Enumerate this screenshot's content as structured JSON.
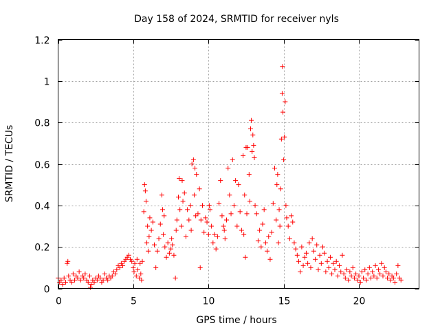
{
  "chart_data": {
    "type": "scatter",
    "title": "Day 158 of 2024, SRMTID for receiver nyls",
    "xlabel": "GPS time / hours",
    "ylabel": "SRMTID / TECUs",
    "xlim": [
      0,
      24
    ],
    "ylim": [
      0,
      1.2
    ],
    "xticks": [
      0,
      5,
      10,
      15,
      20
    ],
    "xtick_labels": [
      "0",
      "5",
      "10",
      "15",
      "20"
    ],
    "yticks": [
      0,
      0.2,
      0.4,
      0.6,
      0.8,
      1,
      1.2
    ],
    "ytick_labels": [
      "0",
      "0.2",
      "0.4",
      "0.6",
      "0.8",
      "1",
      "1.2"
    ],
    "grid": true,
    "marker": "plus",
    "color": "#ff0000",
    "series": [
      {
        "name": "SRMTID",
        "points": [
          [
            0.0,
            0.05
          ],
          [
            0.1,
            0.03
          ],
          [
            0.2,
            0.04
          ],
          [
            0.3,
            0.02
          ],
          [
            0.4,
            0.05
          ],
          [
            0.5,
            0.03
          ],
          [
            0.6,
            0.12
          ],
          [
            0.65,
            0.13
          ],
          [
            0.7,
            0.06
          ],
          [
            0.8,
            0.04
          ],
          [
            0.9,
            0.03
          ],
          [
            1.0,
            0.07
          ],
          [
            1.1,
            0.04
          ],
          [
            1.2,
            0.06
          ],
          [
            1.3,
            0.05
          ],
          [
            1.4,
            0.08
          ],
          [
            1.5,
            0.04
          ],
          [
            1.6,
            0.06
          ],
          [
            1.7,
            0.05
          ],
          [
            1.8,
            0.07
          ],
          [
            1.9,
            0.04
          ],
          [
            2.0,
            0.03
          ],
          [
            2.1,
            0.06
          ],
          [
            2.15,
            0.005
          ],
          [
            2.2,
            0.02
          ],
          [
            2.3,
            0.04
          ],
          [
            2.4,
            0.03
          ],
          [
            2.5,
            0.05
          ],
          [
            2.6,
            0.04
          ],
          [
            2.7,
            0.06
          ],
          [
            2.8,
            0.05
          ],
          [
            2.9,
            0.03
          ],
          [
            3.0,
            0.04
          ],
          [
            3.1,
            0.07
          ],
          [
            3.2,
            0.05
          ],
          [
            3.3,
            0.04
          ],
          [
            3.4,
            0.06
          ],
          [
            3.5,
            0.05
          ],
          [
            3.6,
            0.06
          ],
          [
            3.7,
            0.08
          ],
          [
            3.8,
            0.07
          ],
          [
            3.9,
            0.09
          ],
          [
            4.0,
            0.11
          ],
          [
            4.1,
            0.1
          ],
          [
            4.2,
            0.12
          ],
          [
            4.3,
            0.11
          ],
          [
            4.4,
            0.13
          ],
          [
            4.5,
            0.14
          ],
          [
            4.6,
            0.15
          ],
          [
            4.7,
            0.16
          ],
          [
            4.8,
            0.14
          ],
          [
            4.9,
            0.13
          ],
          [
            5.0,
            0.1
          ],
          [
            5.05,
            0.08
          ],
          [
            5.1,
            0.12
          ],
          [
            5.2,
            0.06
          ],
          [
            5.25,
            0.14
          ],
          [
            5.3,
            0.09
          ],
          [
            5.4,
            0.05
          ],
          [
            5.45,
            0.12
          ],
          [
            5.5,
            0.07
          ],
          [
            5.55,
            0.04
          ],
          [
            5.6,
            0.13
          ],
          [
            5.7,
            0.37
          ],
          [
            5.75,
            0.5
          ],
          [
            5.8,
            0.47
          ],
          [
            5.85,
            0.42
          ],
          [
            5.9,
            0.22
          ],
          [
            5.95,
            0.3
          ],
          [
            6.0,
            0.18
          ],
          [
            6.05,
            0.25
          ],
          [
            6.1,
            0.34
          ],
          [
            6.2,
            0.28
          ],
          [
            6.3,
            0.32
          ],
          [
            6.4,
            0.21
          ],
          [
            6.5,
            0.1
          ],
          [
            6.6,
            0.18
          ],
          [
            6.7,
            0.24
          ],
          [
            6.8,
            0.31
          ],
          [
            6.9,
            0.45
          ],
          [
            6.95,
            0.38
          ],
          [
            7.0,
            0.26
          ],
          [
            7.05,
            0.35
          ],
          [
            7.1,
            0.2
          ],
          [
            7.2,
            0.15
          ],
          [
            7.3,
            0.22
          ],
          [
            7.4,
            0.17
          ],
          [
            7.5,
            0.19
          ],
          [
            7.55,
            0.24
          ],
          [
            7.6,
            0.21
          ],
          [
            7.7,
            0.16
          ],
          [
            7.8,
            0.05
          ],
          [
            7.85,
            0.28
          ],
          [
            7.9,
            0.33
          ],
          [
            8.0,
            0.44
          ],
          [
            8.05,
            0.53
          ],
          [
            8.1,
            0.38
          ],
          [
            8.2,
            0.3
          ],
          [
            8.25,
            0.52
          ],
          [
            8.3,
            0.42
          ],
          [
            8.4,
            0.46
          ],
          [
            8.5,
            0.25
          ],
          [
            8.6,
            0.38
          ],
          [
            8.7,
            0.33
          ],
          [
            8.8,
            0.4
          ],
          [
            8.85,
            0.28
          ],
          [
            8.9,
            0.6
          ],
          [
            9.0,
            0.62
          ],
          [
            9.05,
            0.45
          ],
          [
            9.1,
            0.58
          ],
          [
            9.15,
            0.35
          ],
          [
            9.2,
            0.55
          ],
          [
            9.3,
            0.36
          ],
          [
            9.4,
            0.48
          ],
          [
            9.45,
            0.1
          ],
          [
            9.5,
            0.33
          ],
          [
            9.6,
            0.4
          ],
          [
            9.7,
            0.27
          ],
          [
            9.8,
            0.34
          ],
          [
            9.9,
            0.32
          ],
          [
            10.0,
            0.26
          ],
          [
            10.05,
            0.4
          ],
          [
            10.1,
            0.38
          ],
          [
            10.2,
            0.3
          ],
          [
            10.3,
            0.22
          ],
          [
            10.4,
            0.26
          ],
          [
            10.5,
            0.19
          ],
          [
            10.6,
            0.25
          ],
          [
            10.7,
            0.41
          ],
          [
            10.8,
            0.52
          ],
          [
            10.9,
            0.35
          ],
          [
            11.0,
            0.3
          ],
          [
            11.05,
            0.28
          ],
          [
            11.1,
            0.24
          ],
          [
            11.2,
            0.33
          ],
          [
            11.3,
            0.58
          ],
          [
            11.4,
            0.45
          ],
          [
            11.5,
            0.36
          ],
          [
            11.6,
            0.62
          ],
          [
            11.7,
            0.4
          ],
          [
            11.8,
            0.52
          ],
          [
            11.9,
            0.3
          ],
          [
            12.0,
            0.5
          ],
          [
            12.1,
            0.37
          ],
          [
            12.2,
            0.28
          ],
          [
            12.3,
            0.64
          ],
          [
            12.35,
            0.26
          ],
          [
            12.4,
            0.45
          ],
          [
            12.45,
            0.15
          ],
          [
            12.5,
            0.68
          ],
          [
            12.55,
            0.36
          ],
          [
            12.6,
            0.68
          ],
          [
            12.7,
            0.55
          ],
          [
            12.75,
            0.42
          ],
          [
            12.8,
            0.77
          ],
          [
            12.85,
            0.81
          ],
          [
            12.9,
            0.66
          ],
          [
            12.95,
            0.74
          ],
          [
            13.0,
            0.69
          ],
          [
            13.05,
            0.63
          ],
          [
            13.1,
            0.4
          ],
          [
            13.2,
            0.36
          ],
          [
            13.3,
            0.23
          ],
          [
            13.4,
            0.28
          ],
          [
            13.5,
            0.2
          ],
          [
            13.6,
            0.31
          ],
          [
            13.7,
            0.38
          ],
          [
            13.8,
            0.22
          ],
          [
            13.9,
            0.18
          ],
          [
            14.0,
            0.25
          ],
          [
            14.1,
            0.14
          ],
          [
            14.2,
            0.27
          ],
          [
            14.3,
            0.41
          ],
          [
            14.4,
            0.58
          ],
          [
            14.5,
            0.33
          ],
          [
            14.55,
            0.5
          ],
          [
            14.6,
            0.55
          ],
          [
            14.65,
            0.22
          ],
          [
            14.7,
            0.38
          ],
          [
            14.75,
            0.3
          ],
          [
            14.8,
            0.48
          ],
          [
            14.85,
            0.72
          ],
          [
            14.9,
            0.94
          ],
          [
            14.92,
            1.07
          ],
          [
            14.95,
            0.85
          ],
          [
            15.0,
            0.62
          ],
          [
            15.05,
            0.73
          ],
          [
            15.1,
            0.9
          ],
          [
            15.15,
            0.4
          ],
          [
            15.2,
            0.34
          ],
          [
            15.3,
            0.3
          ],
          [
            15.4,
            0.24
          ],
          [
            15.5,
            0.35
          ],
          [
            15.6,
            0.32
          ],
          [
            15.7,
            0.22
          ],
          [
            15.8,
            0.19
          ],
          [
            15.9,
            0.16
          ],
          [
            16.0,
            0.13
          ],
          [
            16.1,
            0.08
          ],
          [
            16.2,
            0.2
          ],
          [
            16.3,
            0.11
          ],
          [
            16.4,
            0.15
          ],
          [
            16.5,
            0.17
          ],
          [
            16.6,
            0.12
          ],
          [
            16.7,
            0.22
          ],
          [
            16.8,
            0.1
          ],
          [
            16.9,
            0.24
          ],
          [
            17.0,
            0.18
          ],
          [
            17.1,
            0.14
          ],
          [
            17.2,
            0.21
          ],
          [
            17.3,
            0.09
          ],
          [
            17.4,
            0.16
          ],
          [
            17.5,
            0.12
          ],
          [
            17.6,
            0.2
          ],
          [
            17.7,
            0.17
          ],
          [
            17.8,
            0.08
          ],
          [
            17.9,
            0.13
          ],
          [
            18.0,
            0.1
          ],
          [
            18.1,
            0.15
          ],
          [
            18.2,
            0.07
          ],
          [
            18.3,
            0.12
          ],
          [
            18.4,
            0.09
          ],
          [
            18.5,
            0.13
          ],
          [
            18.6,
            0.06
          ],
          [
            18.7,
            0.11
          ],
          [
            18.8,
            0.08
          ],
          [
            18.9,
            0.16
          ],
          [
            19.0,
            0.07
          ],
          [
            19.1,
            0.05
          ],
          [
            19.2,
            0.09
          ],
          [
            19.3,
            0.04
          ],
          [
            19.4,
            0.08
          ],
          [
            19.5,
            0.06
          ],
          [
            19.6,
            0.1
          ],
          [
            19.7,
            0.05
          ],
          [
            19.8,
            0.07
          ],
          [
            19.9,
            0.04
          ],
          [
            20.0,
            0.06
          ],
          [
            20.1,
            0.03
          ],
          [
            20.2,
            0.08
          ],
          [
            20.3,
            0.05
          ],
          [
            20.4,
            0.09
          ],
          [
            20.5,
            0.04
          ],
          [
            20.6,
            0.07
          ],
          [
            20.7,
            0.1
          ],
          [
            20.8,
            0.05
          ],
          [
            20.9,
            0.08
          ],
          [
            21.0,
            0.06
          ],
          [
            21.1,
            0.11
          ],
          [
            21.2,
            0.05
          ],
          [
            21.3,
            0.09
          ],
          [
            21.4,
            0.07
          ],
          [
            21.5,
            0.12
          ],
          [
            21.6,
            0.06
          ],
          [
            21.7,
            0.1
          ],
          [
            21.8,
            0.08
          ],
          [
            21.9,
            0.05
          ],
          [
            22.0,
            0.07
          ],
          [
            22.1,
            0.04
          ],
          [
            22.2,
            0.06
          ],
          [
            22.3,
            0.05
          ],
          [
            22.4,
            0.03
          ],
          [
            22.5,
            0.07
          ],
          [
            22.6,
            0.11
          ],
          [
            22.7,
            0.05
          ],
          [
            22.8,
            0.04
          ]
        ]
      }
    ]
  }
}
